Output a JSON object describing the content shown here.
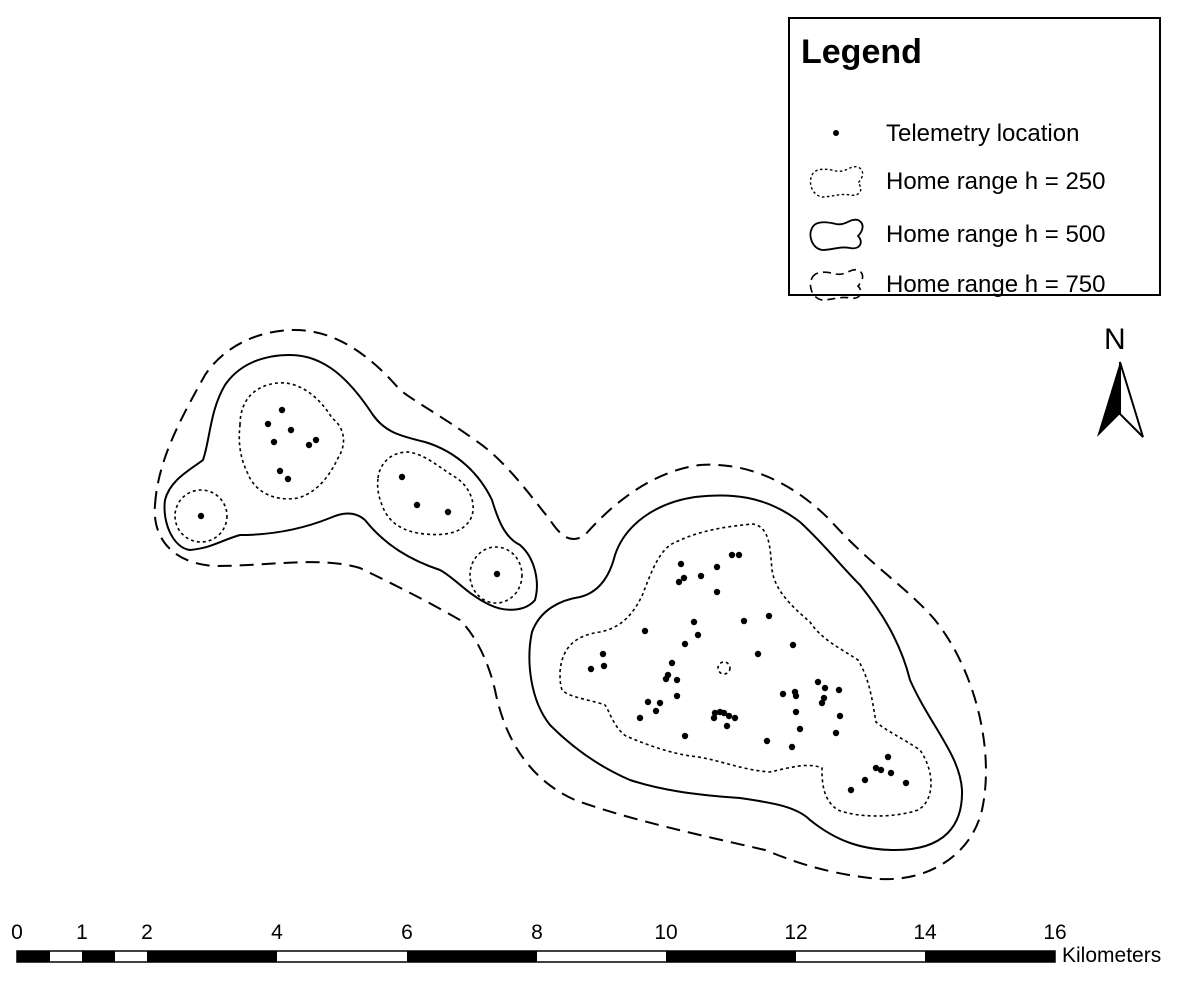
{
  "legend": {
    "title": "Legend",
    "items": [
      {
        "label": "Telemetry location",
        "symbol": "point-icon"
      },
      {
        "label": "Home range h = 250",
        "symbol": "dotted-outline-icon"
      },
      {
        "label": "Home range h = 500",
        "symbol": "solid-outline-icon"
      },
      {
        "label": "Home range h = 750",
        "symbol": "dashed-outline-icon"
      }
    ]
  },
  "north_arrow": {
    "label": "N"
  },
  "scale_bar": {
    "ticks": [
      "0",
      "1",
      "2",
      "4",
      "6",
      "8",
      "10",
      "12",
      "14",
      "16"
    ],
    "units": "Kilometers"
  },
  "colors": {
    "ink": "#000000",
    "background": "#ffffff"
  }
}
